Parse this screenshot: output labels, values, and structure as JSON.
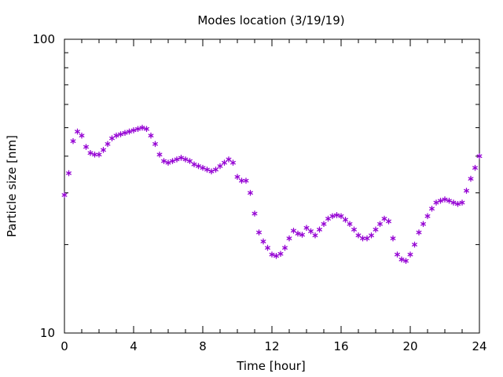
{
  "chart_data": {
    "type": "scatter",
    "title": "Modes location (3/19/19)",
    "xlabel": "Time [hour]",
    "ylabel": "Particle size [nm]",
    "xlim": [
      0,
      24
    ],
    "ylim": [
      10,
      100
    ],
    "yscale": "log",
    "grid": false,
    "legend": "none",
    "x_ticks": [
      0,
      4,
      8,
      12,
      16,
      20,
      24
    ],
    "y_ticks": [
      10,
      100
    ],
    "x_tick_labels": [
      "0",
      "4",
      "8",
      "12",
      "16",
      "20",
      "24"
    ],
    "y_tick_labels": [
      "10",
      "100"
    ],
    "marker": "asterisk",
    "color": "#9400d3",
    "series": [
      {
        "x": [
          0,
          0.25,
          0.5,
          0.75,
          1,
          1.25,
          1.5,
          1.75,
          2,
          2.25,
          2.5,
          2.75,
          3,
          3.25,
          3.5,
          3.75,
          4,
          4.25,
          4.5,
          4.75,
          5,
          5.25,
          5.5,
          5.75,
          6,
          6.25,
          6.5,
          6.75,
          7,
          7.25,
          7.5,
          7.75,
          8,
          8.25,
          8.5,
          8.75,
          9,
          9.25,
          9.5,
          9.75,
          10,
          10.25,
          10.5,
          10.75,
          11,
          11.25,
          11.5,
          11.75,
          12,
          12.25,
          12.5,
          12.75,
          13,
          13.25,
          13.5,
          13.75,
          14,
          14.25,
          14.5,
          14.75,
          15,
          15.25,
          15.5,
          15.75,
          16,
          16.25,
          16.5,
          16.75,
          17,
          17.25,
          17.5,
          17.75,
          18,
          18.25,
          18.5,
          18.75,
          19,
          19.25,
          19.5,
          19.75,
          20,
          20.25,
          20.5,
          20.75,
          21,
          21.25,
          21.5,
          21.75,
          22,
          22.25,
          22.5,
          22.75,
          23,
          23.25,
          23.5,
          23.75,
          24
        ],
        "y": [
          29.5,
          35,
          45,
          48.5,
          47,
          43,
          41,
          40.5,
          40.5,
          42,
          44,
          46,
          47,
          47.5,
          48,
          48.5,
          49,
          49.5,
          50,
          49.5,
          47,
          44,
          40.5,
          38.5,
          38,
          38.5,
          39,
          39.5,
          39,
          38.5,
          37.5,
          37,
          36.5,
          36,
          35.5,
          36,
          37,
          38,
          39,
          38,
          34,
          33,
          33,
          30,
          25.5,
          22,
          20.5,
          19.5,
          18.5,
          18.3,
          18.6,
          19.5,
          21,
          22.3,
          21.8,
          21.6,
          22.8,
          22.2,
          21.5,
          22.5,
          23.5,
          24.5,
          25,
          25.2,
          25,
          24.3,
          23.5,
          22.5,
          21.5,
          21,
          21,
          21.5,
          22.5,
          23.5,
          24.5,
          24,
          21,
          18.5,
          17.8,
          17.6,
          18.5,
          20,
          22,
          23.5,
          25,
          26.5,
          27.8,
          28.2,
          28.5,
          28.2,
          27.8,
          27.5,
          27.8,
          30.5,
          33.5,
          36.5,
          40
        ]
      }
    ]
  }
}
